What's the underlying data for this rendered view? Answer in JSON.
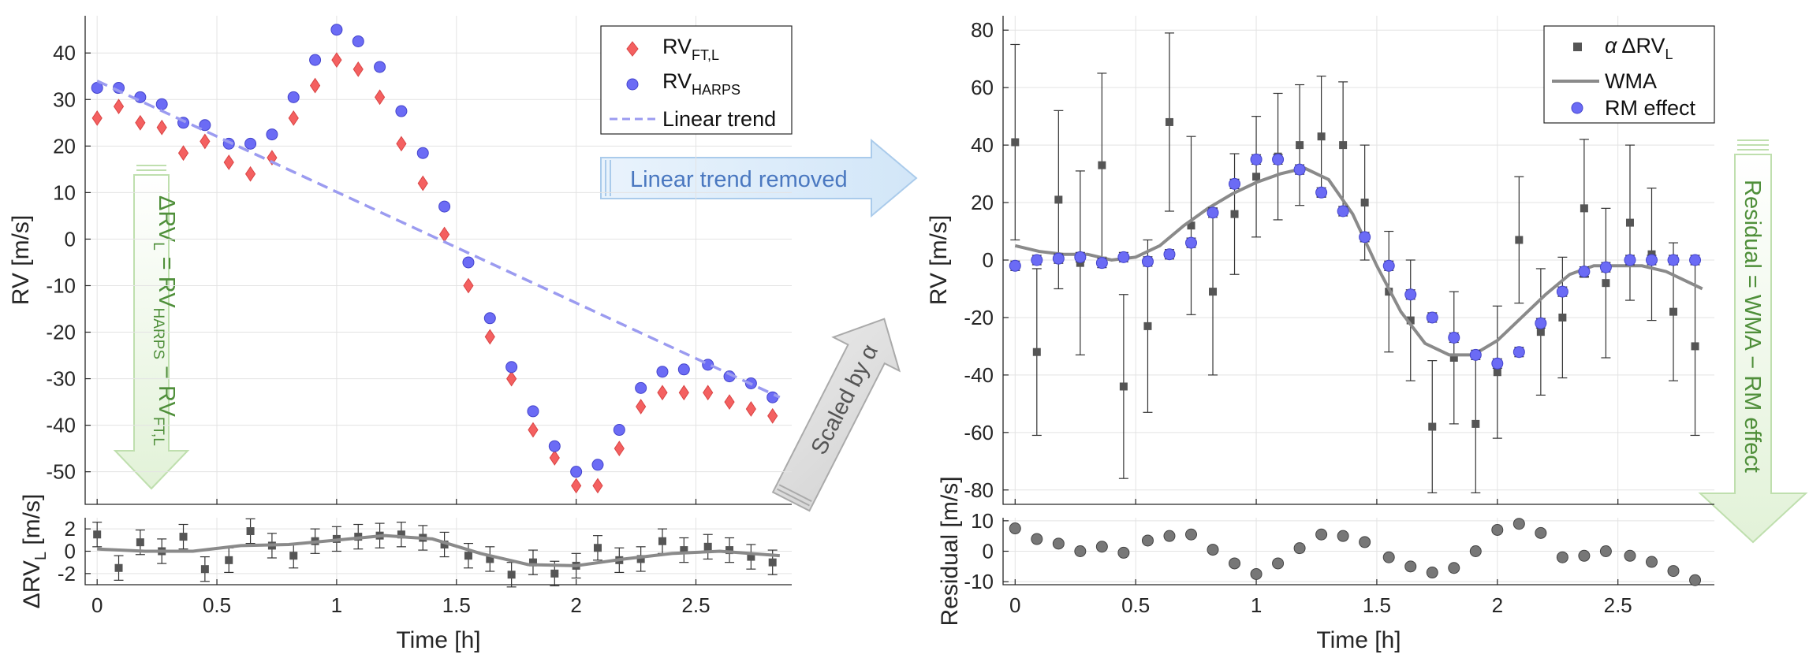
{
  "colors": {
    "rv_ftl": "#f46060",
    "rv_harps": "#6b6bf5",
    "linear_trend": "#9b9bf0",
    "delta_points": "#555555",
    "wma": "#8a8a8a",
    "residual": "#777777",
    "blue_arrow": "#4a78c0",
    "green_arrow": "#4f8f3a",
    "grey_arrow": "#555555"
  },
  "annotations": {
    "blue_arrow": "Linear trend removed",
    "grey_arrow": "Scaled by α",
    "left_green_arrow": "ΔRV_L = RV_HARPS − RV_FT,L",
    "right_green_arrow": "Residual = WMA − RM effect"
  },
  "chart_data": [
    {
      "type": "scatter",
      "panel": "left-top",
      "xlabel": "",
      "ylabel": "RV [m/s]",
      "xlim": [
        -0.05,
        2.9
      ],
      "ylim": [
        -57,
        48
      ],
      "yticks": [
        -50,
        -40,
        -30,
        -20,
        -10,
        0,
        10,
        20,
        30,
        40
      ],
      "grid": true,
      "legend": "top-right",
      "series": [
        {
          "name": "RV_FT,L",
          "marker": "diamond",
          "x": [
            0.0,
            0.09,
            0.18,
            0.27,
            0.36,
            0.45,
            0.55,
            0.64,
            0.73,
            0.82,
            0.91,
            1.0,
            1.09,
            1.18,
            1.27,
            1.36,
            1.45,
            1.55,
            1.64,
            1.73,
            1.82,
            1.91,
            2.0,
            2.09,
            2.18,
            2.27,
            2.36,
            2.45,
            2.55,
            2.64,
            2.73,
            2.82
          ],
          "y": [
            26,
            28.5,
            25,
            24,
            18.5,
            21,
            16.5,
            14,
            17.5,
            26,
            33,
            38.5,
            36.5,
            30.5,
            20.5,
            12,
            1,
            -10,
            -21,
            -30,
            -41,
            -47,
            -53,
            -53,
            -45,
            -36,
            -33,
            -33,
            -33,
            -35,
            -36.5,
            -38
          ]
        },
        {
          "name": "RV_HARPS",
          "marker": "circle",
          "x": [
            0.0,
            0.09,
            0.18,
            0.27,
            0.36,
            0.45,
            0.55,
            0.64,
            0.73,
            0.82,
            0.91,
            1.0,
            1.09,
            1.18,
            1.27,
            1.36,
            1.45,
            1.55,
            1.64,
            1.73,
            1.82,
            1.91,
            2.0,
            2.09,
            2.18,
            2.27,
            2.36,
            2.45,
            2.55,
            2.64,
            2.73,
            2.82
          ],
          "y": [
            32.5,
            32.5,
            30.5,
            29,
            25,
            24.5,
            20.5,
            20.5,
            22.5,
            30.5,
            38.5,
            45,
            42.5,
            37,
            27.5,
            18.5,
            7,
            -5,
            -17,
            -27.5,
            -37,
            -44.5,
            -50,
            -48.5,
            -41,
            -32,
            -28.5,
            -28,
            -27,
            -29.5,
            -31,
            -34
          ]
        },
        {
          "name": "Linear trend",
          "line": "dashed",
          "x": [
            0.0,
            2.85
          ],
          "y": [
            34,
            -34
          ]
        }
      ]
    },
    {
      "type": "scatter",
      "panel": "left-bottom",
      "xlabel": "Time [h]",
      "ylabel": "ΔRV_L [m/s]",
      "xlim": [
        -0.05,
        2.9
      ],
      "ylim": [
        -3,
        3
      ],
      "yticks": [
        -2,
        0,
        2
      ],
      "xticks": [
        0,
        0.5,
        1,
        1.5,
        2,
        2.5
      ],
      "grid": true,
      "series": [
        {
          "name": "",
          "marker": "square",
          "x": [
            0.0,
            0.09,
            0.18,
            0.27,
            0.36,
            0.45,
            0.55,
            0.64,
            0.73,
            0.82,
            0.91,
            1.0,
            1.09,
            1.18,
            1.27,
            1.36,
            1.45,
            1.55,
            1.64,
            1.73,
            1.82,
            1.91,
            2.0,
            2.09,
            2.18,
            2.27,
            2.36,
            2.45,
            2.55,
            2.64,
            2.73,
            2.82
          ],
          "y": [
            1.5,
            -1.5,
            0.8,
            0,
            1.3,
            -1.6,
            -0.8,
            1.8,
            0.5,
            -0.4,
            0.9,
            1.1,
            1.3,
            1.4,
            1.5,
            1.2,
            0.6,
            -0.4,
            -0.7,
            -2.1,
            -1.0,
            -2.0,
            -1.3,
            0.3,
            -0.8,
            -0.7,
            0.9,
            0.1,
            0.4,
            0.1,
            -0.5,
            -1.0
          ],
          "err": [
            1.1,
            1.1,
            1.1,
            1.1,
            1.1,
            1.1,
            1.1,
            1.1,
            1.1,
            1.1,
            1.1,
            1.1,
            1.1,
            1.1,
            1.1,
            1.1,
            1.1,
            1.1,
            1.1,
            1.1,
            1.1,
            1.1,
            1.1,
            1.1,
            1.1,
            1.1,
            1.1,
            1.1,
            1.1,
            1.1,
            1.1,
            1.1
          ]
        },
        {
          "name": "",
          "line": "solid",
          "x": [
            0.0,
            0.2,
            0.4,
            0.6,
            0.8,
            1.0,
            1.2,
            1.4,
            1.6,
            1.8,
            2.0,
            2.2,
            2.4,
            2.6,
            2.85
          ],
          "y": [
            0.2,
            0.0,
            0.0,
            0.5,
            0.6,
            1.0,
            1.4,
            1.1,
            -0.2,
            -1.2,
            -1.3,
            -0.7,
            -0.2,
            0.0,
            -0.4
          ]
        }
      ]
    },
    {
      "type": "scatter",
      "panel": "right-top",
      "xlabel": "",
      "ylabel": "RV [m/s]",
      "xlim": [
        -0.05,
        2.9
      ],
      "ylim": [
        -85,
        85
      ],
      "yticks": [
        -80,
        -60,
        -40,
        -20,
        0,
        20,
        40,
        60,
        80
      ],
      "grid": true,
      "legend": "top-right",
      "series": [
        {
          "name": "α ΔRV_L",
          "marker": "square",
          "x": [
            0.0,
            0.09,
            0.18,
            0.27,
            0.36,
            0.45,
            0.55,
            0.64,
            0.73,
            0.82,
            0.91,
            1.0,
            1.09,
            1.18,
            1.27,
            1.36,
            1.45,
            1.55,
            1.64,
            1.73,
            1.82,
            1.91,
            2.0,
            2.09,
            2.18,
            2.27,
            2.36,
            2.45,
            2.55,
            2.64,
            2.73,
            2.82
          ],
          "y": [
            41,
            -32,
            21,
            -1,
            33,
            -44,
            -23,
            48,
            12,
            -11,
            16,
            29,
            36,
            40,
            43,
            40,
            20,
            -11,
            -21,
            -58,
            -34,
            -57,
            -39,
            7,
            -25,
            -20,
            18,
            -8,
            13,
            2,
            -18,
            -30
          ],
          "err": [
            34,
            29,
            31,
            32,
            32,
            32,
            30,
            31,
            31,
            29,
            21,
            21,
            22,
            21,
            21,
            22,
            20,
            21,
            21,
            23,
            23,
            24,
            23,
            22,
            22,
            21,
            24,
            26,
            27,
            23,
            24,
            31
          ]
        },
        {
          "name": "WMA",
          "line": "solid",
          "x": [
            0.0,
            0.1,
            0.2,
            0.3,
            0.4,
            0.5,
            0.6,
            0.7,
            0.8,
            0.9,
            1.0,
            1.1,
            1.2,
            1.3,
            1.4,
            1.5,
            1.6,
            1.7,
            1.8,
            1.9,
            2.0,
            2.1,
            2.2,
            2.3,
            2.4,
            2.5,
            2.6,
            2.7,
            2.8,
            2.85
          ],
          "y": [
            5,
            3,
            2,
            2,
            0,
            1,
            5,
            12,
            18,
            23,
            27,
            30,
            32,
            28,
            16,
            -2,
            -18,
            -29,
            -33,
            -33,
            -28,
            -20,
            -12,
            -5,
            -2,
            -2,
            -2,
            -4,
            -8,
            -10
          ]
        },
        {
          "name": "RM effect",
          "marker": "circle",
          "x": [
            0.0,
            0.09,
            0.18,
            0.27,
            0.36,
            0.45,
            0.55,
            0.64,
            0.73,
            0.82,
            0.91,
            1.0,
            1.09,
            1.18,
            1.27,
            1.36,
            1.45,
            1.55,
            1.64,
            1.73,
            1.82,
            1.91,
            2.0,
            2.09,
            2.18,
            2.27,
            2.36,
            2.45,
            2.55,
            2.64,
            2.73,
            2.82
          ],
          "y": [
            -2,
            0,
            0.5,
            1,
            -1,
            1,
            -0.5,
            2,
            6,
            16.5,
            26.5,
            35,
            35,
            31.5,
            23.5,
            17,
            8,
            -2,
            -12,
            -20,
            -27,
            -33,
            -36,
            -32,
            -22,
            -11,
            -4,
            -2.5,
            0,
            0,
            0,
            0
          ]
        }
      ]
    },
    {
      "type": "scatter",
      "panel": "right-bottom",
      "xlabel": "Time [h]",
      "ylabel": "Residual [m/s]",
      "xlim": [
        -0.05,
        2.9
      ],
      "ylim": [
        -11,
        11
      ],
      "yticks": [
        -10,
        0,
        10
      ],
      "xticks": [
        0,
        0.5,
        1,
        1.5,
        2,
        2.5
      ],
      "grid": true,
      "series": [
        {
          "name": "",
          "marker": "circle",
          "x": [
            0.0,
            0.09,
            0.18,
            0.27,
            0.36,
            0.45,
            0.55,
            0.64,
            0.73,
            0.82,
            0.91,
            1.0,
            1.09,
            1.18,
            1.27,
            1.36,
            1.45,
            1.55,
            1.64,
            1.73,
            1.82,
            1.91,
            2.0,
            2.09,
            2.18,
            2.27,
            2.36,
            2.45,
            2.55,
            2.64,
            2.73,
            2.82
          ],
          "y": [
            7.5,
            4,
            2.5,
            0,
            1.5,
            -0.5,
            3.5,
            5,
            5.5,
            0.5,
            -4,
            -7.5,
            -4,
            1,
            5.5,
            5,
            3,
            -2,
            -5,
            -7,
            -5.5,
            0,
            7,
            9,
            6,
            -2,
            -1.5,
            0,
            -1.5,
            -3.5,
            -6.5,
            -9.5
          ]
        }
      ]
    }
  ]
}
